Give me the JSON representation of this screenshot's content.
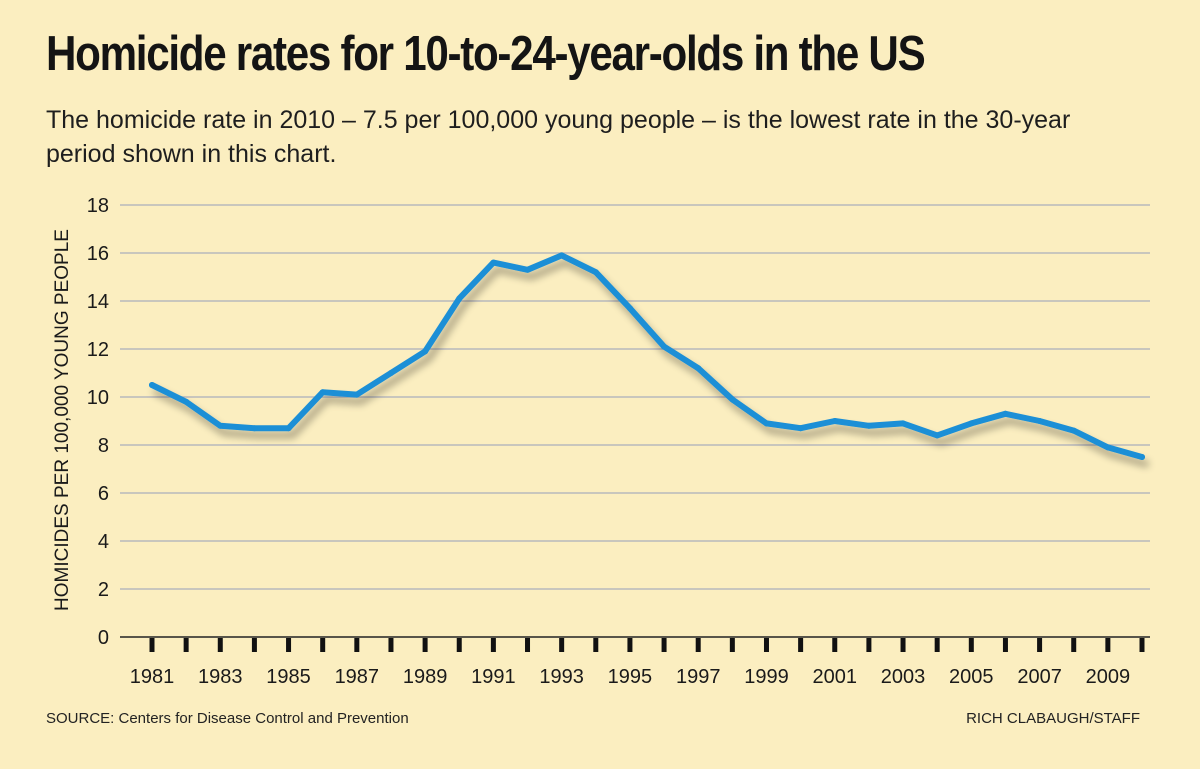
{
  "title": "Homicide rates for 10-to-24-year-olds in the US",
  "subtitle": "The homicide rate in 2010 – 7.5 per 100,000 young people – is the lowest rate in the 30-year period shown in this chart.",
  "source": "SOURCE: Centers for Disease Control and Prevention",
  "credit": "RICH CLABAUGH/STAFF",
  "colors": {
    "background": "#fbeec0",
    "line": "#1b8fd6",
    "grid": "#b8b8bc",
    "text": "#1a1a1a"
  },
  "chart_data": {
    "type": "line",
    "title": "Homicide rates for 10-to-24-year-olds in the US",
    "xlabel": "",
    "ylabel": "HOMICIDES PER 100,000 YOUNG PEOPLE",
    "ylim": [
      0,
      18
    ],
    "yticks": [
      0,
      2,
      4,
      6,
      8,
      10,
      12,
      14,
      16,
      18
    ],
    "xlim": [
      1981,
      2010
    ],
    "xtick_labels": [
      "1981",
      "1983",
      "1985",
      "1987",
      "1989",
      "1991",
      "1993",
      "1995",
      "1997",
      "1999",
      "2001",
      "2003",
      "2005",
      "2007",
      "2009"
    ],
    "grid": true,
    "legend": "none",
    "x": [
      1981,
      1982,
      1983,
      1984,
      1985,
      1986,
      1987,
      1988,
      1989,
      1990,
      1991,
      1992,
      1993,
      1994,
      1995,
      1996,
      1997,
      1998,
      1999,
      2000,
      2001,
      2002,
      2003,
      2004,
      2005,
      2006,
      2007,
      2008,
      2009,
      2010
    ],
    "y": [
      10.5,
      9.8,
      8.8,
      8.7,
      8.7,
      10.2,
      10.1,
      11.0,
      11.9,
      14.1,
      15.6,
      15.3,
      15.9,
      15.2,
      13.7,
      12.1,
      11.2,
      9.9,
      8.9,
      8.7,
      9.0,
      8.8,
      8.9,
      8.4,
      8.9,
      9.3,
      9.0,
      8.6,
      7.9,
      7.5
    ]
  }
}
